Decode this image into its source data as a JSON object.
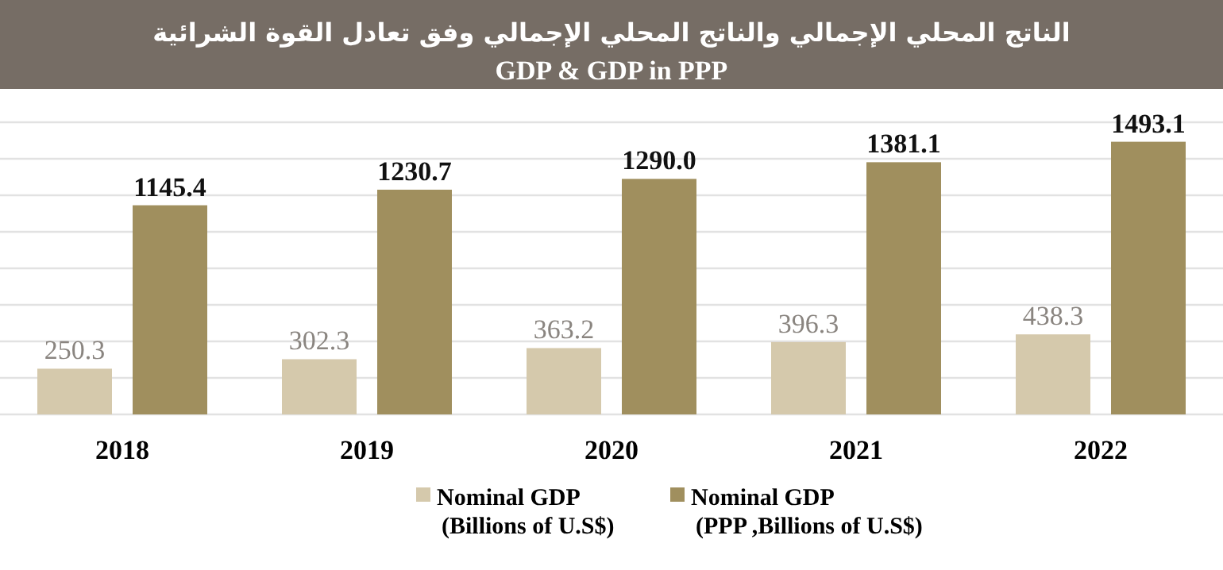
{
  "chart_data": {
    "type": "bar",
    "title": "الناتج المحلي الإجمالي والناتج المحلي الإجمالي وفق تعادل القوة الشرائية",
    "subtitle": "GDP & GDP in PPP",
    "categories": [
      "2018",
      "2019",
      "2020",
      "2021",
      "2022"
    ],
    "series": [
      {
        "name": "Nominal GDP (Billions of U.S$)",
        "color": "#d5c9ac",
        "values": [
          250.3,
          302.3,
          363.2,
          396.3,
          438.3
        ],
        "value_labels": [
          "250.3",
          "302.3",
          "363.2",
          "396.3",
          "438.3"
        ]
      },
      {
        "name": "Nominal GDP (PPP ,Billions of U.S$)",
        "color": "#a08f5e",
        "values": [
          1145.4,
          1230.7,
          1290.0,
          1381.1,
          1493.1
        ],
        "value_labels": [
          "1145.4",
          "1230.7",
          "1290.0",
          "1381.1",
          "1493.1"
        ]
      }
    ],
    "ylim": [
      0,
      1600
    ],
    "yticks": [
      {
        "value": 0,
        "label": null
      },
      {
        "value": 200,
        "label": null
      },
      {
        "value": 400,
        "label": null
      },
      {
        "value": 600,
        "label": null
      },
      {
        "value": 800,
        "label": null
      },
      {
        "value": 1000,
        "label": null
      },
      {
        "value": 1200,
        "label": null
      },
      {
        "value": 1400,
        "label": null
      },
      {
        "value": 1600,
        "label": null
      }
    ],
    "grid": "y",
    "legend": "bottom",
    "tick_labels": "x"
  }
}
